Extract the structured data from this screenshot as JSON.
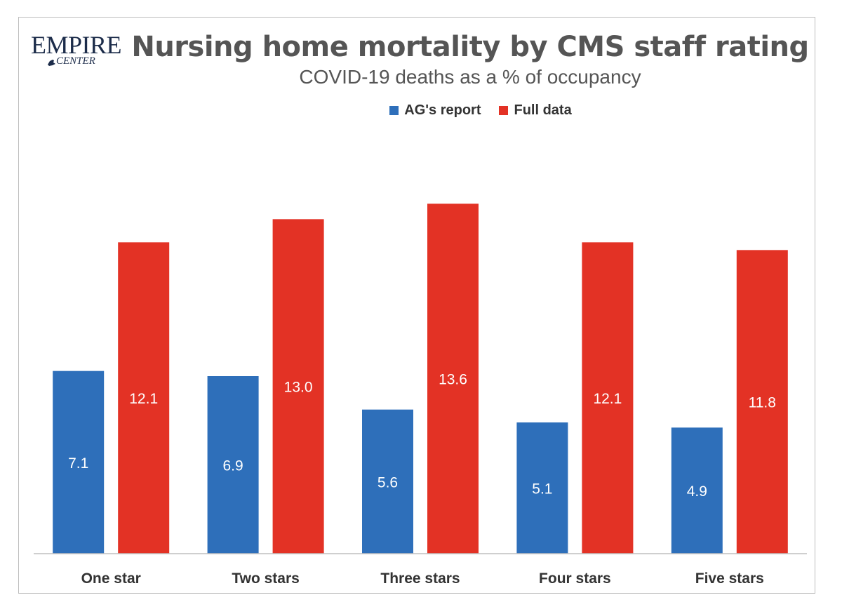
{
  "logo": {
    "line1": "EMPIRE",
    "line2": "CENTER"
  },
  "chart_data": {
    "type": "bar",
    "title": "Nursing home mortality by CMS staff rating",
    "subtitle": "COVID-19 deaths as a % of occupancy",
    "categories": [
      "One star",
      "Two stars",
      "Three stars",
      "Four stars",
      "Five stars"
    ],
    "series": [
      {
        "name": "AG's report",
        "color": "#2e6fba",
        "values": [
          7.1,
          6.9,
          5.6,
          5.1,
          4.9
        ]
      },
      {
        "name": "Full data",
        "color": "#e33225",
        "values": [
          12.1,
          13.0,
          13.6,
          12.1,
          11.8
        ]
      }
    ],
    "ylim": [
      0,
      14.7
    ],
    "grid": false,
    "legend": "top-center",
    "data_labels": true
  }
}
